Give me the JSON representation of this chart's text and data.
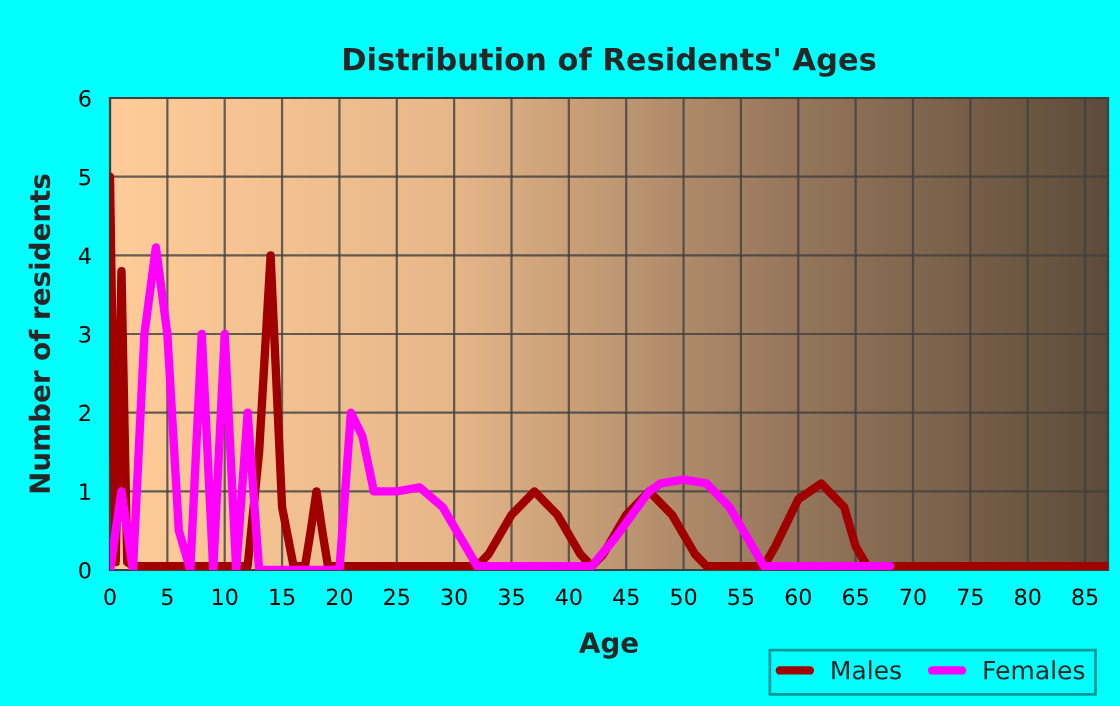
{
  "chart_data": {
    "type": "line",
    "title": "Distribution of Residents' Ages",
    "xlabel": "Age",
    "ylabel": "Number of residents",
    "xlim": [
      0,
      87
    ],
    "xticks": [
      0,
      5,
      10,
      15,
      20,
      25,
      30,
      35,
      40,
      45,
      50,
      55,
      60,
      65,
      70,
      75,
      80,
      85
    ],
    "ylim": [
      0,
      6
    ],
    "yticks": [
      0,
      1,
      2,
      3,
      4,
      5,
      6
    ],
    "grid": true,
    "legend": "bottom right",
    "line_style": "solid",
    "marker": "none",
    "series": [
      {
        "name": "Males",
        "color": "#a00000",
        "x": [
          0,
          0.5,
          1,
          1.5,
          2,
          12,
          13,
          14,
          15,
          16,
          17,
          17.5,
          18,
          18.5,
          19,
          32,
          33,
          35,
          37,
          39,
          41,
          42,
          43,
          45,
          47,
          49,
          51,
          52,
          57,
          58,
          60,
          62,
          64,
          65,
          66,
          87
        ],
        "values": [
          5,
          0.1,
          3.8,
          0.1,
          0.05,
          0.05,
          1.5,
          4,
          0.8,
          0.05,
          0.05,
          0.5,
          1,
          0.5,
          0.05,
          0.05,
          0.2,
          0.7,
          1,
          0.7,
          0.2,
          0.05,
          0.2,
          0.7,
          1,
          0.7,
          0.2,
          0.05,
          0.05,
          0.3,
          0.9,
          1.1,
          0.8,
          0.3,
          0.05,
          0.05
        ]
      },
      {
        "name": "Females",
        "color": "#ff00ff",
        "x": [
          0,
          1,
          2,
          3,
          4,
          5,
          6,
          7,
          7.5,
          8,
          8.5,
          9,
          9.5,
          10,
          10.5,
          11,
          11.5,
          12,
          12.5,
          13,
          20,
          21,
          22,
          23,
          25,
          27,
          29,
          31,
          32,
          42,
          44,
          46,
          47,
          48,
          50,
          52,
          54,
          56,
          57,
          65,
          68
        ],
        "values": [
          0,
          1,
          0,
          3,
          4.1,
          3,
          0.5,
          0,
          1.5,
          3,
          1.5,
          0,
          1.5,
          3,
          1.5,
          0,
          1,
          2,
          1,
          0,
          0,
          2,
          1.7,
          1,
          1,
          1.05,
          0.8,
          0.3,
          0.05,
          0.05,
          0.4,
          0.8,
          1,
          1.1,
          1.15,
          1.1,
          0.8,
          0.3,
          0.05,
          0.05,
          0.05
        ]
      }
    ]
  }
}
